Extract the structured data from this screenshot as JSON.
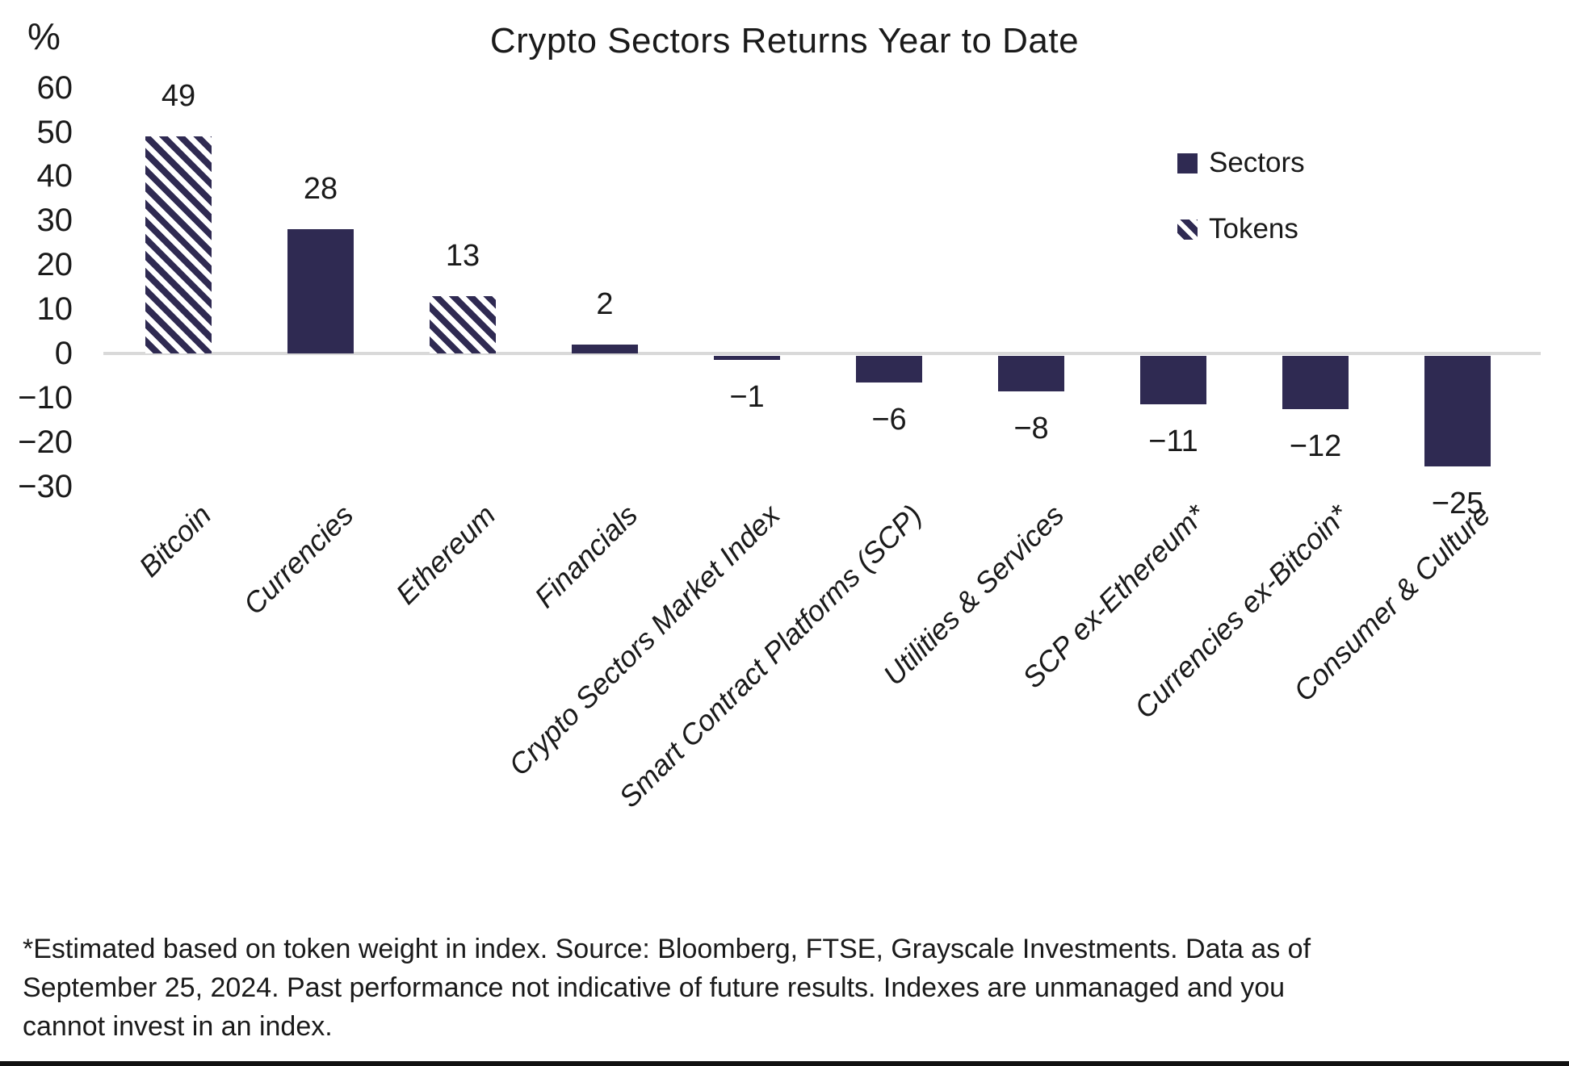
{
  "title": "Crypto Sectors Returns Year to Date",
  "y_axis_unit": "%",
  "colors": {
    "bar": "#2f2a52",
    "axis_line": "#d9d9d9",
    "text": "#1a1a1a",
    "bottom_rule": "#111111"
  },
  "chart_data": {
    "type": "bar",
    "title": "Crypto Sectors Returns Year to Date",
    "ylabel": "%",
    "xlabel": "",
    "ylim": [
      -30,
      60
    ],
    "yticks": [
      60,
      50,
      40,
      30,
      20,
      10,
      0,
      -10,
      -20,
      -30
    ],
    "grid": false,
    "legend_position": "upper right",
    "categories": [
      "Bitcoin",
      "Currencies",
      "Ethereum",
      "Financials",
      "Crypto Sectors Market Index",
      "Smart Contract Platforms (SCP)",
      "Utilities & Services",
      "SCP ex-Ethereum*",
      "Currencies ex-Bitcoin*",
      "Consumer & Culture"
    ],
    "values": [
      49,
      28,
      13,
      2,
      -1,
      -6,
      -8,
      -11,
      -12,
      -25
    ],
    "series": [
      "Tokens",
      "Sectors",
      "Tokens",
      "Sectors",
      "Sectors",
      "Sectors",
      "Sectors",
      "Sectors",
      "Sectors",
      "Sectors"
    ],
    "legend": [
      {
        "label": "Sectors",
        "pattern": "solid"
      },
      {
        "label": "Tokens",
        "pattern": "hatched"
      }
    ]
  },
  "footnote_lines": [
    "*Estimated based on token weight in index. Source: Bloomberg, FTSE, Grayscale Investments. Data as of",
    "September 25, 2024. Past performance not indicative of future results. Indexes are unmanaged and you",
    "cannot invest in an index."
  ]
}
